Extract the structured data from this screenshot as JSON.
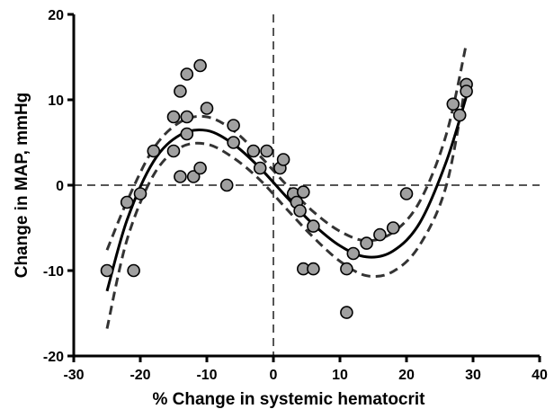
{
  "chart_data": {
    "type": "scatter",
    "title": "",
    "xlabel": "% Change in systemic hematocrit",
    "ylabel": "Change in MAP, mmHg",
    "xlim": [
      -30,
      40
    ],
    "ylim": [
      -20,
      20
    ],
    "x_ticks": [
      "-30",
      "-20",
      "-10",
      "0",
      "10",
      "20",
      "30",
      "40"
    ],
    "y_ticks": [
      "-20",
      "-10",
      "0",
      "10",
      "20"
    ],
    "grid": false,
    "reference_lines": {
      "x": 0,
      "y": 0,
      "style": "dashed"
    },
    "colors": {
      "points": "#a0a0a0",
      "point_stroke": "#000000",
      "fit": "#000000",
      "ci": "#333333",
      "reference": "#555555"
    },
    "points": [
      {
        "x": -25,
        "y": -10
      },
      {
        "x": -22,
        "y": -2
      },
      {
        "x": -21,
        "y": -10
      },
      {
        "x": -20,
        "y": -1
      },
      {
        "x": -18,
        "y": 4
      },
      {
        "x": -15,
        "y": 8
      },
      {
        "x": -15,
        "y": 4
      },
      {
        "x": -14,
        "y": 11
      },
      {
        "x": -14,
        "y": 1
      },
      {
        "x": -13,
        "y": 13
      },
      {
        "x": -13,
        "y": 8
      },
      {
        "x": -13,
        "y": 6
      },
      {
        "x": -12,
        "y": 1
      },
      {
        "x": -11,
        "y": 14
      },
      {
        "x": -11,
        "y": 2
      },
      {
        "x": -10,
        "y": 9
      },
      {
        "x": -7,
        "y": 0
      },
      {
        "x": -6,
        "y": 7
      },
      {
        "x": -6,
        "y": 5
      },
      {
        "x": -3,
        "y": 4
      },
      {
        "x": -2,
        "y": 2
      },
      {
        "x": -1,
        "y": 4
      },
      {
        "x": 1,
        "y": 2
      },
      {
        "x": 1.5,
        "y": 3
      },
      {
        "x": 3,
        "y": -1
      },
      {
        "x": 3.5,
        "y": -2
      },
      {
        "x": 4,
        "y": -3
      },
      {
        "x": 4.5,
        "y": -0.8
      },
      {
        "x": 4.5,
        "y": -9.8
      },
      {
        "x": 6,
        "y": -4.8
      },
      {
        "x": 6,
        "y": -9.8
      },
      {
        "x": 11,
        "y": -9.8
      },
      {
        "x": 11,
        "y": -14.9
      },
      {
        "x": 12,
        "y": -8
      },
      {
        "x": 14,
        "y": -6.8
      },
      {
        "x": 16,
        "y": -5.8
      },
      {
        "x": 18,
        "y": -5
      },
      {
        "x": 20,
        "y": -1
      },
      {
        "x": 27,
        "y": 9.5
      },
      {
        "x": 28,
        "y": 8.2
      },
      {
        "x": 29,
        "y": 11.8
      },
      {
        "x": 29,
        "y": 11
      }
    ],
    "fit": {
      "type": "cubic",
      "x_range": [
        -25,
        29
      ],
      "curve": [
        {
          "x": -25,
          "y": -12.4
        },
        {
          "x": -22,
          "y": -4.1
        },
        {
          "x": -18,
          "y": 2.8
        },
        {
          "x": -14,
          "y": 5.9
        },
        {
          "x": -10,
          "y": 6.4
        },
        {
          "x": -6,
          "y": 4.8
        },
        {
          "x": -2,
          "y": 2.0
        },
        {
          "x": 2,
          "y": -1.4
        },
        {
          "x": 6,
          "y": -4.6
        },
        {
          "x": 10,
          "y": -7.1
        },
        {
          "x": 14,
          "y": -8.4
        },
        {
          "x": 18,
          "y": -7.7
        },
        {
          "x": 22,
          "y": -4.4
        },
        {
          "x": 26,
          "y": 2.8
        },
        {
          "x": 29,
          "y": 10.4
        }
      ],
      "ci_upper": [
        {
          "x": -25,
          "y": -7.6
        },
        {
          "x": -22,
          "y": -1.9
        },
        {
          "x": -18,
          "y": 4.3
        },
        {
          "x": -14,
          "y": 7.4
        },
        {
          "x": -10,
          "y": 8.0
        },
        {
          "x": -6,
          "y": 6.4
        },
        {
          "x": -2,
          "y": 3.4
        },
        {
          "x": 2,
          "y": 0.0
        },
        {
          "x": 6,
          "y": -3.1
        },
        {
          "x": 10,
          "y": -5.4
        },
        {
          "x": 14,
          "y": -6.5
        },
        {
          "x": 18,
          "y": -5.5
        },
        {
          "x": 22,
          "y": -1.9
        },
        {
          "x": 26,
          "y": 6.0
        },
        {
          "x": 29,
          "y": 16.6
        }
      ],
      "ci_lower": [
        {
          "x": -25,
          "y": -16.8
        },
        {
          "x": -22,
          "y": -6.4
        },
        {
          "x": -18,
          "y": 1.2
        },
        {
          "x": -14,
          "y": 4.4
        },
        {
          "x": -10,
          "y": 4.8
        },
        {
          "x": -6,
          "y": 3.2
        },
        {
          "x": -2,
          "y": 0.6
        },
        {
          "x": 2,
          "y": -2.8
        },
        {
          "x": 6,
          "y": -6.1
        },
        {
          "x": 10,
          "y": -8.9
        },
        {
          "x": 14,
          "y": -10.6
        },
        {
          "x": 18,
          "y": -10.1
        },
        {
          "x": 22,
          "y": -7.0
        },
        {
          "x": 26,
          "y": 0.0
        },
        {
          "x": 29,
          "y": 12.4
        }
      ]
    }
  }
}
